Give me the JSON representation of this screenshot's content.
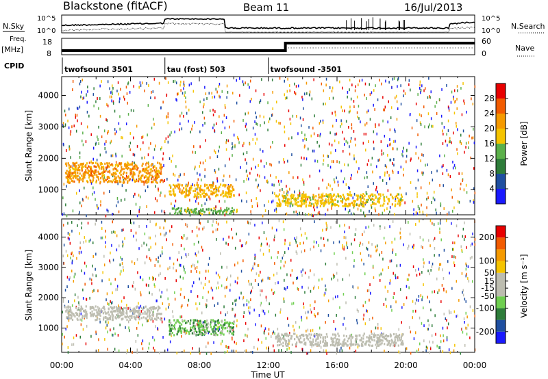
{
  "header": {
    "station": "Blackstone (fitACF)",
    "beam": "Beam 11",
    "date": "16/Jul/2013"
  },
  "top_panels": {
    "noise_sky_label": "N.Sky",
    "noise_search_label": "N.Search",
    "noise_left_ticks": [
      "10^5",
      "10^0"
    ],
    "noise_right_ticks": [
      "10^5",
      "10^0"
    ],
    "freq_label": "Freq.",
    "freq_unit": "[MHz]",
    "freq_ticks": [
      "18",
      "8"
    ],
    "nave_label": "Nave",
    "nave_ticks": [
      "60",
      "0"
    ],
    "cpid_label": "CPID",
    "cpid_segments": [
      {
        "name": "twofsound 3501",
        "start_hour": 0
      },
      {
        "name": "tau (fost) 503",
        "start_hour": 6
      },
      {
        "name": "twofsound -3501",
        "start_hour": 12
      }
    ]
  },
  "colors": {
    "power_scale": [
      "#1a1aff",
      "#1f4fa0",
      "#2e7d3a",
      "#5bb04a",
      "#f5c400",
      "#f59a00",
      "#f25b00",
      "#e80000"
    ],
    "velocity_scale": [
      "#1a1aff",
      "#1f4fa0",
      "#2e7d3a",
      "#6fcf50",
      "#bdbdb0",
      "#bdbdb0",
      "#f5c400",
      "#f59a00",
      "#f25b00",
      "#e80000"
    ]
  },
  "chart_data": [
    {
      "type": "heatmap",
      "panel": "power",
      "ylabel": "Slant Range [km]",
      "yticks": [
        1000,
        2000,
        3000,
        4000
      ],
      "ylim": [
        200,
        4600
      ],
      "xlim": [
        0,
        24
      ],
      "colorbar_label": "Power [dB]",
      "colorbar_ticks": [
        4,
        8,
        12,
        16,
        20,
        24,
        28
      ],
      "colorbar_range": [
        0,
        32
      ],
      "regions": [
        {
          "t0": 0.2,
          "t1": 5.8,
          "r0": 1250,
          "r1": 1900,
          "value": 22
        },
        {
          "t0": 6.2,
          "t1": 10.0,
          "r0": 800,
          "r1": 1200,
          "value": 20
        },
        {
          "t0": 6.3,
          "t1": 10.2,
          "r0": 250,
          "r1": 450,
          "value": 14
        },
        {
          "t0": 12.4,
          "t1": 19.8,
          "r0": 500,
          "r1": 900,
          "value": 18
        }
      ]
    },
    {
      "type": "heatmap",
      "panel": "velocity",
      "ylabel": "Slant Range [km]",
      "yticks": [
        1000,
        2000,
        3000,
        4000
      ],
      "ylim": [
        200,
        4600
      ],
      "xlim": [
        0,
        24
      ],
      "xlabel": "Time UT",
      "xticks": [
        "00:00",
        "04:00",
        "08:00",
        "12:00",
        "16:00",
        "20:00",
        "00:00"
      ],
      "colorbar_label": "Velocity [m s⁻¹]",
      "colorbar_ticks": [
        200,
        100,
        50,
        15,
        -15,
        -50,
        -100,
        -200
      ],
      "colorbar_range": [
        -250,
        250
      ],
      "regions": [
        {
          "t0": 0.2,
          "t1": 5.8,
          "r0": 1300,
          "r1": 1750,
          "value": 0
        },
        {
          "t0": 6.2,
          "t1": 10.0,
          "r0": 800,
          "r1": 1300,
          "value": -80
        },
        {
          "t0": 12.4,
          "t1": 19.8,
          "r0": 450,
          "r1": 850,
          "value": 0
        }
      ]
    }
  ]
}
